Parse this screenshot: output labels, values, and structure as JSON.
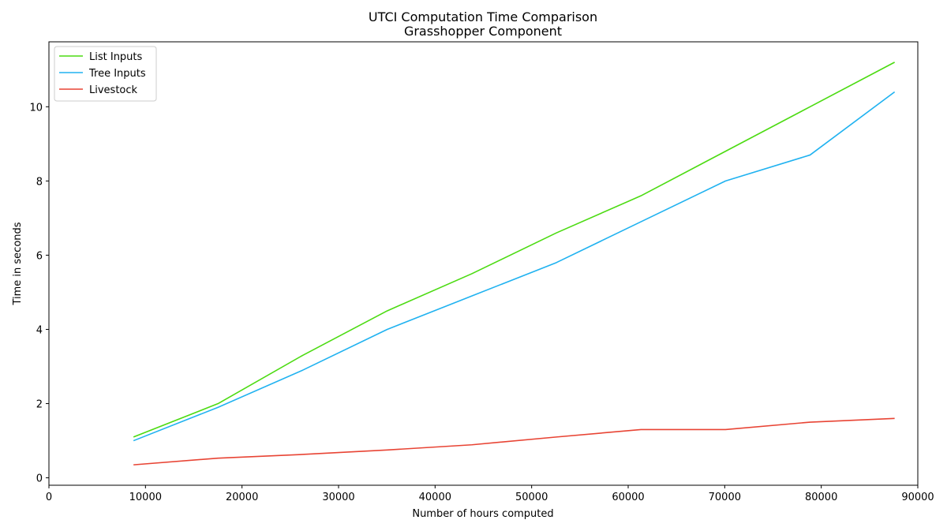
{
  "chart_data": {
    "type": "line",
    "title": "UTCI Computation Time Comparison",
    "subtitle": "Grasshopper Component",
    "xlabel": "Number of hours computed",
    "ylabel": "Time in seconds",
    "xlim": [
      0,
      90000
    ],
    "ylim": [
      -0.2,
      11.75
    ],
    "x_ticks": [
      0,
      10000,
      20000,
      30000,
      40000,
      50000,
      60000,
      70000,
      80000,
      90000
    ],
    "y_ticks": [
      0,
      2,
      4,
      6,
      8,
      10
    ],
    "grid": false,
    "legend_position": "top-left",
    "x": [
      8760,
      17520,
      26280,
      35040,
      43800,
      52560,
      61320,
      70080,
      78840,
      87600
    ],
    "series": [
      {
        "name": "List Inputs",
        "color": "#4cdb12",
        "values": [
          1.1,
          2.0,
          3.3,
          4.5,
          5.5,
          6.6,
          7.6,
          8.8,
          10.0,
          11.2
        ]
      },
      {
        "name": "Tree Inputs",
        "color": "#20b2f0",
        "values": [
          1.0,
          1.9,
          2.9,
          4.0,
          4.9,
          5.8,
          6.9,
          8.0,
          8.7,
          10.4
        ]
      },
      {
        "name": "Livestock",
        "color": "#e84434",
        "values": [
          0.35,
          0.53,
          0.63,
          0.75,
          0.89,
          1.1,
          1.3,
          1.3,
          1.5,
          1.6
        ]
      }
    ]
  }
}
